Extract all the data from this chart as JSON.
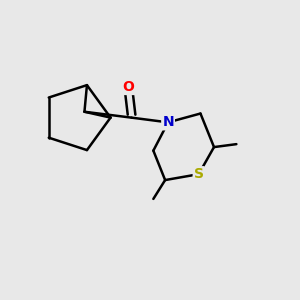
{
  "background_color": "#e8e8e8",
  "atom_colors": {
    "O": "#ff0000",
    "N": "#0000cc",
    "S": "#aaaa00",
    "C": "#000000"
  },
  "bond_color": "#000000",
  "bond_width": 1.8,
  "font_size_atoms": 10,
  "fig_width": 3.0,
  "fig_height": 3.0,
  "dpi": 100,
  "xlim": [
    -2.6,
    2.4
  ],
  "ylim": [
    -1.8,
    1.8
  ]
}
